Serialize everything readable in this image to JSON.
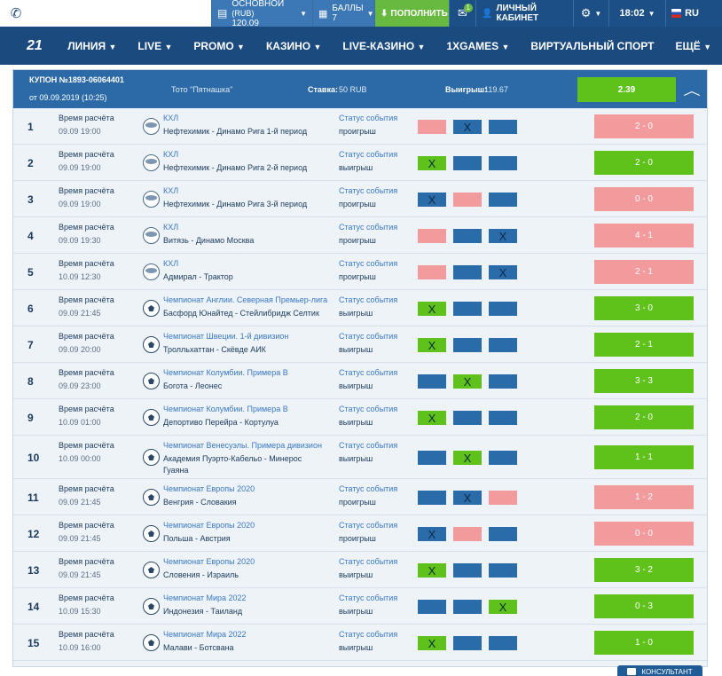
{
  "topbar": {
    "phone_icon": "phone-icon",
    "account_label": "ОСНОВНОЙ",
    "account_currency": "(RUB)",
    "account_balance": "120.09",
    "bonus_label": "БАЛЛЫ",
    "bonus_value": "7",
    "deposit_label": "ПОПОЛНИТЬ",
    "mail_badge": "1",
    "cabinet_label": "ЛИЧНЫЙ КАБИНЕТ",
    "time": "18:02",
    "lang": "RU"
  },
  "nav": {
    "logo": "21",
    "items": [
      "ЛИНИЯ",
      "LIVE",
      "PROMO",
      "КАЗИНО",
      "LIVE-КАЗИНО",
      "1XGAMES",
      "ВИРТУАЛЬНЫЙ СПОРТ",
      "ЕЩЁ"
    ]
  },
  "coupon": {
    "title": "КУПОН №1893-06064401",
    "date": "от 09.09.2019 (10:25)",
    "toto": "Тото \"Пятнашка\"",
    "stake_label": "Ставка:",
    "stake_value": "50 RUB",
    "win_label": "Выигрыш:",
    "win_value": "119.67",
    "coef": "2.39"
  },
  "row_labels": {
    "time_label": "Время расчёта",
    "status_label": "Статус события"
  },
  "rows": [
    {
      "num": "1",
      "date": "09.09 19:00",
      "sport": "hockey",
      "league": "КХЛ",
      "match": "Нефтехимик - Динамо Рига 1-й период",
      "status": "проигрыш",
      "cells": [
        "pink",
        "blue",
        "blue"
      ],
      "mark": 1,
      "score": "2 - 0",
      "result": "pink"
    },
    {
      "num": "2",
      "date": "09.09 19:00",
      "sport": "hockey",
      "league": "КХЛ",
      "match": "Нефтехимик - Динамо Рига 2-й период",
      "status": "выигрыш",
      "cells": [
        "green",
        "blue",
        "blue"
      ],
      "mark": 0,
      "score": "2 - 0",
      "result": "green"
    },
    {
      "num": "3",
      "date": "09.09 19:00",
      "sport": "hockey",
      "league": "КХЛ",
      "match": "Нефтехимик - Динамо Рига 3-й период",
      "status": "проигрыш",
      "cells": [
        "blue",
        "pink",
        "blue"
      ],
      "mark": 0,
      "score": "0 - 0",
      "result": "pink"
    },
    {
      "num": "4",
      "date": "09.09 19:30",
      "sport": "hockey",
      "league": "КХЛ",
      "match": "Витязь - Динамо Москва",
      "status": "проигрыш",
      "cells": [
        "pink",
        "blue",
        "blue"
      ],
      "mark": 2,
      "score": "4 - 1",
      "result": "pink"
    },
    {
      "num": "5",
      "date": "10.09 12:30",
      "sport": "hockey",
      "league": "КХЛ",
      "match": "Адмирал - Трактор",
      "status": "проигрыш",
      "cells": [
        "pink",
        "blue",
        "blue"
      ],
      "mark": 2,
      "score": "2 - 1",
      "result": "pink"
    },
    {
      "num": "6",
      "date": "09.09 21:45",
      "sport": "soccer",
      "league": "Чемпионат Англии. Северная Премьер-лига",
      "match": "Басфорд Юнайтед - Стейлибридж Селтик",
      "status": "выигрыш",
      "cells": [
        "green",
        "blue",
        "blue"
      ],
      "mark": 0,
      "score": "3 - 0",
      "result": "green"
    },
    {
      "num": "7",
      "date": "09.09 20:00",
      "sport": "soccer",
      "league": "Чемпионат Швеции. 1-й дивизион",
      "match": "Тролльхаттан - Скёвде АИК",
      "status": "выигрыш",
      "cells": [
        "green",
        "blue",
        "blue"
      ],
      "mark": 0,
      "score": "2 - 1",
      "result": "green"
    },
    {
      "num": "8",
      "date": "09.09 23:00",
      "sport": "soccer",
      "league": "Чемпионат Колумбии. Примера B",
      "match": "Богота - Леонес",
      "status": "выигрыш",
      "cells": [
        "blue",
        "green",
        "blue"
      ],
      "mark": 1,
      "score": "3 - 3",
      "result": "green"
    },
    {
      "num": "9",
      "date": "10.09 01:00",
      "sport": "soccer",
      "league": "Чемпионат Колумбии. Примера B",
      "match": "Депортиво Перейра - Кортулуа",
      "status": "выигрыш",
      "cells": [
        "green",
        "blue",
        "blue"
      ],
      "mark": 0,
      "score": "2 - 0",
      "result": "green"
    },
    {
      "num": "10",
      "date": "10.09 00:00",
      "sport": "soccer",
      "league": "Чемпионат Венесуэлы. Примера дивизион",
      "match": "Академия Пуэрто-Кабельо - Минерос",
      "match2": "Гуаяна",
      "status": "выигрыш",
      "cells": [
        "blue",
        "green",
        "blue"
      ],
      "mark": 1,
      "score": "1 - 1",
      "result": "green"
    },
    {
      "num": "11",
      "date": "09.09 21:45",
      "sport": "soccer",
      "league": "Чемпионат Европы 2020",
      "match": "Венгрия - Словакия",
      "status": "проигрыш",
      "cells": [
        "blue",
        "blue",
        "pink"
      ],
      "mark": 1,
      "score": "1 - 2",
      "result": "pink"
    },
    {
      "num": "12",
      "date": "09.09 21:45",
      "sport": "soccer",
      "league": "Чемпионат Европы 2020",
      "match": "Польша - Австрия",
      "status": "проигрыш",
      "cells": [
        "blue",
        "pink",
        "blue"
      ],
      "mark": 0,
      "score": "0 - 0",
      "result": "pink"
    },
    {
      "num": "13",
      "date": "09.09 21:45",
      "sport": "soccer",
      "league": "Чемпионат Европы 2020",
      "match": "Словения - Израиль",
      "status": "выигрыш",
      "cells": [
        "green",
        "blue",
        "blue"
      ],
      "mark": 0,
      "score": "3 - 2",
      "result": "green"
    },
    {
      "num": "14",
      "date": "10.09 15:30",
      "sport": "soccer",
      "league": "Чемпионат Мира 2022",
      "match": "Индонезия - Таиланд",
      "status": "выигрыш",
      "cells": [
        "blue",
        "blue",
        "green"
      ],
      "mark": 2,
      "score": "0 - 3",
      "result": "green"
    },
    {
      "num": "15",
      "date": "10.09 16:00",
      "sport": "soccer",
      "league": "Чемпионат Мира 2022",
      "match": "Малави - Ботсвана",
      "status": "выигрыш",
      "cells": [
        "green",
        "blue",
        "blue"
      ],
      "mark": 0,
      "score": "1 - 0",
      "result": "green"
    }
  ],
  "mark_symbol": "X",
  "consultant_label": "КОНСУЛЬТАНТ"
}
